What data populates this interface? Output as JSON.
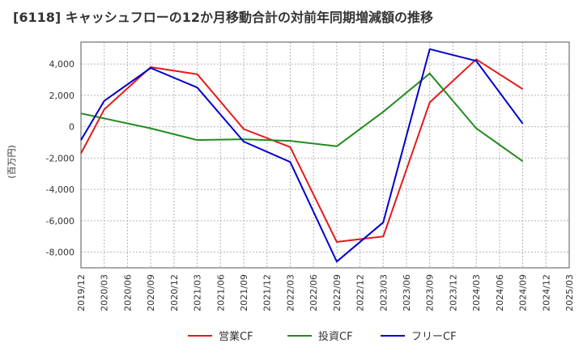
{
  "chart_data": {
    "type": "line",
    "title": "[6118]  キャッシュフローの12か月移動合計の対前年同期増減額の推移",
    "ylabel": "(百万円)",
    "xlabel": "",
    "ylim": [
      -9000,
      5400
    ],
    "yticks": [
      4000,
      2000,
      0,
      -2000,
      -4000,
      -6000,
      -8000
    ],
    "ytick_labels": [
      "4,000",
      "2,000",
      "0",
      "-2,000",
      "-4,000",
      "-6,000",
      "-8,000"
    ],
    "categories": [
      "2019/12",
      "2020/03",
      "2020/06",
      "2020/09",
      "2020/12",
      "2021/03",
      "2021/06",
      "2021/09",
      "2021/12",
      "2022/03",
      "2022/06",
      "2022/09",
      "2022/12",
      "2023/03",
      "2023/06",
      "2023/09",
      "2023/12",
      "2024/03",
      "2024/06",
      "2024/09",
      "2024/12",
      "2025/03"
    ],
    "grid": true,
    "legend_position": "bottom",
    "series": [
      {
        "name": "営業CF",
        "color": "#e31a1c",
        "values": [
          -1700,
          1100,
          null,
          3800,
          null,
          3350,
          null,
          -150,
          null,
          -1300,
          null,
          -7350,
          null,
          -7000,
          null,
          1550,
          null,
          4300,
          null,
          2400,
          null,
          null
        ]
      },
      {
        "name": "投資CF",
        "color": "#228b22",
        "values": [
          850,
          null,
          null,
          -100,
          null,
          -850,
          null,
          -800,
          null,
          -900,
          null,
          -1250,
          null,
          950,
          null,
          3400,
          null,
          -100,
          null,
          -2200,
          null,
          null
        ]
      },
      {
        "name": "フリーCF",
        "color": "#0000cc",
        "values": [
          -850,
          1650,
          null,
          3750,
          null,
          2500,
          null,
          -950,
          null,
          -2250,
          null,
          -8600,
          null,
          -6100,
          null,
          4950,
          null,
          4200,
          null,
          200,
          null,
          null
        ]
      }
    ]
  }
}
